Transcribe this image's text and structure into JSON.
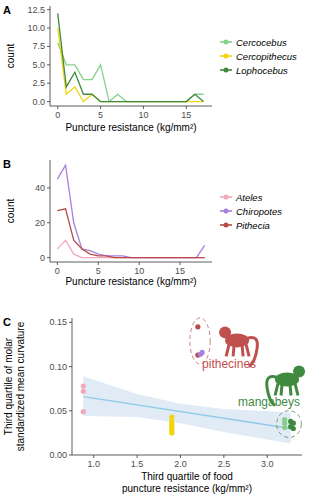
{
  "chart_data": [
    {
      "type": "line",
      "title": "A",
      "xlabel": "Puncture resistance (kg/mm²)",
      "ylabel": "count",
      "x": [
        0,
        1,
        2,
        3,
        4,
        5,
        6,
        7,
        8,
        9,
        10,
        11,
        12,
        13,
        14,
        15,
        16,
        17
      ],
      "xlim": [
        -0.9,
        18
      ],
      "xticks": [
        0,
        5,
        10,
        15
      ],
      "ylim": [
        -0.6,
        13
      ],
      "yticks": [
        {
          "value": 0,
          "label": "0.0"
        },
        {
          "value": 2.5,
          "label": "2.5"
        },
        {
          "value": 5,
          "label": "5.0"
        },
        {
          "value": 7.5,
          "label": "7.5"
        },
        {
          "value": 10,
          "label": "10.0"
        },
        {
          "value": 12.5,
          "label": "12.5"
        }
      ],
      "grid": false,
      "legend": "right",
      "series": [
        {
          "name": "Cercocebus",
          "color": "#86d08a",
          "line_style": "solid",
          "values": [
            8,
            5,
            5,
            3,
            3,
            5,
            0,
            1,
            0,
            0,
            0,
            0,
            0,
            0,
            0,
            0,
            1,
            1
          ]
        },
        {
          "name": "Cercopithecus",
          "color": "#f2d40c",
          "line_style": "solid",
          "values": [
            10,
            1,
            2,
            0,
            1,
            0,
            0,
            0,
            0,
            0,
            0,
            0,
            0,
            0,
            0,
            0,
            0,
            0
          ]
        },
        {
          "name": "Lophocebus",
          "color": "#3f8a3f",
          "line_style": "solid",
          "values": [
            12,
            2,
            4,
            1,
            1,
            0,
            0,
            0,
            0,
            0,
            0,
            0,
            0,
            0,
            0,
            0,
            1,
            0
          ]
        }
      ]
    },
    {
      "type": "line",
      "title": "B",
      "xlabel": "Puncture resistance (kg/mm²)",
      "ylabel": "count",
      "x": [
        0,
        1,
        2,
        3,
        4,
        5,
        6,
        7,
        8,
        9,
        10,
        11,
        12,
        13,
        14,
        15,
        16,
        17,
        18
      ],
      "xlim": [
        -0.9,
        18.9
      ],
      "xticks": [
        0,
        5,
        10,
        15
      ],
      "ylim": [
        -2.5,
        56
      ],
      "yticks": [
        0,
        20,
        40
      ],
      "grid": false,
      "legend": "right",
      "series": [
        {
          "name": "Ateles",
          "color": "#f2a7bd",
          "line_style": "solid",
          "values": [
            5,
            10,
            2,
            0,
            0,
            0,
            0,
            0,
            0,
            0,
            0,
            0,
            0,
            0,
            0,
            0,
            0,
            0,
            0
          ]
        },
        {
          "name": "Chiropotes",
          "color": "#a77fe0",
          "line_style": "solid",
          "values": [
            45,
            53,
            20,
            5,
            4,
            2,
            1,
            1,
            1,
            0,
            0,
            0,
            0,
            0,
            0,
            0,
            0,
            0,
            7
          ]
        },
        {
          "name": "Pithecia",
          "color": "#b94a48",
          "line_style": "solid",
          "values": [
            27,
            28,
            10,
            5,
            2,
            1,
            1,
            0,
            0,
            0,
            0,
            0,
            0,
            0,
            0,
            0,
            0,
            0,
            0
          ]
        }
      ]
    },
    {
      "type": "scatter",
      "title": "C",
      "xlabel": [
        "Third quartile of food",
        "puncture resistance (kg/mm²)"
      ],
      "ylabel": [
        "Third quartile of molar",
        "standardized mean curvature"
      ],
      "xlim": [
        0.75,
        3.4
      ],
      "xticks": [
        {
          "value": 1,
          "label": "1.0"
        },
        {
          "value": 1.5,
          "label": "1.5"
        },
        {
          "value": 2,
          "label": "2.0"
        },
        {
          "value": 2.5,
          "label": "2.5"
        },
        {
          "value": 3,
          "label": "3.0"
        }
      ],
      "ylim": [
        0,
        0.155
      ],
      "yticks": [
        {
          "value": 0,
          "label": "0.00"
        },
        {
          "value": 0.05,
          "label": "0.05"
        },
        {
          "value": 0.1,
          "label": "0.10"
        },
        {
          "value": 0.15,
          "label": "0.15"
        }
      ],
      "grid": false,
      "band": {
        "x": [
          0.88,
          1.5,
          2.0,
          2.5,
          3.27
        ],
        "lower": [
          0.044,
          0.043,
          0.036,
          0.026,
          0.013
        ],
        "upper": [
          0.089,
          0.069,
          0.058,
          0.052,
          0.048
        ]
      },
      "series": [
        {
          "type": "scatter",
          "marker": "circle",
          "color": "#f2a7bd",
          "x": [
            0.88,
            0.88,
            0.88
          ],
          "values": [
            0.078,
            0.072,
            0.049
          ]
        },
        {
          "type": "scatter",
          "marker": "circle",
          "color": "#f2d40c",
          "x": [
            1.9,
            1.9,
            1.9,
            1.9,
            1.9,
            1.9,
            1.9
          ],
          "values": [
            0.043,
            0.038,
            0.035,
            0.032,
            0.03,
            0.028,
            0.025
          ]
        },
        {
          "type": "scatter",
          "marker": "circle",
          "color": "#b94a48",
          "x": [
            2.2,
            2.2
          ],
          "values": [
            0.145,
            0.113
          ]
        },
        {
          "type": "scatter",
          "marker": "circle",
          "color": "#a77fe0",
          "x": [
            2.23,
            2.25
          ],
          "values": [
            0.114,
            0.116
          ]
        },
        {
          "type": "scatter",
          "marker": "circle",
          "color": "#86d08a",
          "x": [
            3.2,
            3.2,
            3.2
          ],
          "values": [
            0.04,
            0.036,
            0.031
          ]
        },
        {
          "type": "scatter",
          "marker": "circle",
          "color": "#3f8a3f",
          "x": [
            3.27,
            3.3,
            3.27,
            3.3
          ],
          "values": [
            0.038,
            0.036,
            0.032,
            0.03
          ]
        },
        {
          "type": "line",
          "line_style": "solid",
          "color": "#8ecae6",
          "x": [
            0.88,
            3.27
          ],
          "values": [
            0.066,
            0.03
          ]
        }
      ],
      "annotations": [
        {
          "text": "pithecines",
          "color": "#c0504d",
          "x": 2.56,
          "y": 0.098
        },
        {
          "text": "mangabeys",
          "color": "#3f8a3f",
          "x": 3.02,
          "y": 0.056
        }
      ]
    }
  ]
}
